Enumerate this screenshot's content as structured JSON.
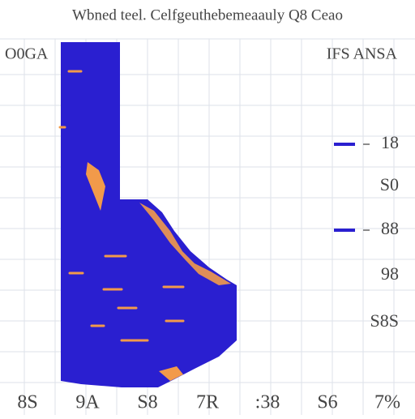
{
  "header": {
    "title": "Wbned teel. Celfgeuthebemeaauly Q8 Ceao",
    "left_label": "O0GA",
    "right_label": "IFS ANSA"
  },
  "side_labels": [
    "18",
    "S0",
    "88",
    "98",
    "S8S"
  ],
  "bottom_labels": [
    "8S",
    "9A",
    "S8",
    "7R",
    ":38",
    "S6",
    "7%"
  ]
}
